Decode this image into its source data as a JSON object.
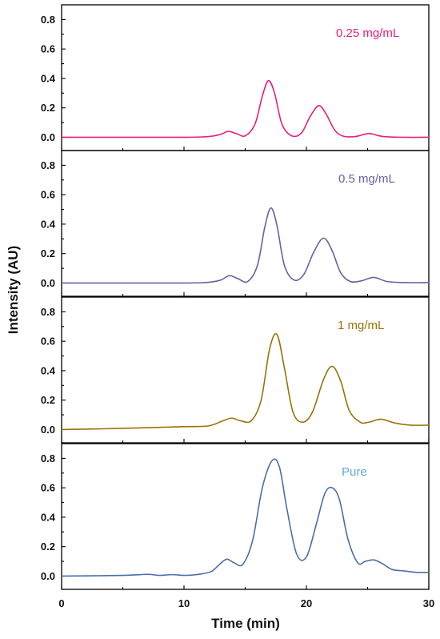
{
  "chart_data": {
    "type": "line",
    "xlabel": "Time (min)",
    "ylabel": "Intensity (AU)",
    "xlim": [
      0,
      30
    ],
    "x_ticks": [
      "0",
      "10",
      "20",
      "30"
    ],
    "y_ticks": [
      "0.0",
      "0.2",
      "0.4",
      "0.6",
      "0.8"
    ],
    "grid": false,
    "panels": [
      {
        "label": "0.25 mg/mL",
        "color": "#e8207a",
        "ylim": [
          -0.09,
          0.9
        ],
        "x": [
          0,
          5,
          10,
          12,
          13,
          13.6,
          14.3,
          15,
          15.8,
          16.4,
          16.9,
          17.4,
          18,
          18.8,
          19.6,
          20.3,
          21,
          21.6,
          22.3,
          23,
          24,
          25.1,
          26.3,
          28,
          30
        ],
        "y": [
          0.0,
          0.0,
          0.0,
          0.005,
          0.02,
          0.04,
          0.025,
          0.01,
          0.09,
          0.28,
          0.385,
          0.3,
          0.09,
          0.01,
          0.03,
          0.14,
          0.215,
          0.16,
          0.05,
          0.008,
          0.005,
          0.025,
          0.005,
          0.0,
          0.0
        ]
      },
      {
        "label": "0.5 mg/mL",
        "color": "#6b5fa3",
        "ylim": [
          -0.09,
          0.9
        ],
        "x": [
          0,
          5,
          10,
          12,
          13,
          13.7,
          14.4,
          15.2,
          16,
          16.6,
          17.1,
          17.6,
          18.2,
          19,
          19.8,
          20.6,
          21.4,
          22.1,
          22.8,
          23.6,
          24.5,
          25.5,
          26.6,
          28,
          30
        ],
        "y": [
          0.0,
          0.0,
          0.0,
          0.005,
          0.02,
          0.05,
          0.03,
          0.01,
          0.12,
          0.38,
          0.51,
          0.39,
          0.12,
          0.02,
          0.06,
          0.21,
          0.305,
          0.22,
          0.07,
          0.01,
          0.015,
          0.038,
          0.01,
          0.003,
          0.003
        ]
      },
      {
        "label": "1 mg/mL",
        "color": "#9a7208",
        "ylim": [
          -0.09,
          0.9
        ],
        "x": [
          0,
          5,
          8,
          10,
          12,
          13.2,
          13.9,
          14.6,
          15.5,
          16.3,
          17,
          17.6,
          18.2,
          18.9,
          19.7,
          20.5,
          21.4,
          22.1,
          22.8,
          23.5,
          24.4,
          25.1,
          26.1,
          27.2,
          28.5,
          30
        ],
        "y": [
          0.0,
          0.008,
          0.015,
          0.02,
          0.025,
          0.06,
          0.078,
          0.06,
          0.06,
          0.2,
          0.55,
          0.645,
          0.42,
          0.12,
          0.05,
          0.12,
          0.34,
          0.43,
          0.33,
          0.13,
          0.05,
          0.05,
          0.07,
          0.045,
          0.03,
          0.03
        ]
      },
      {
        "label": "Pure",
        "color": "#4a6fa8",
        "label_color": "#5fa8d6",
        "ylim": [
          -0.09,
          0.9
        ],
        "x": [
          0,
          5,
          7,
          8,
          9,
          10,
          11,
          12.2,
          12.9,
          13.5,
          14.1,
          14.8,
          15.6,
          16.4,
          17.2,
          17.8,
          18.4,
          19.2,
          20,
          20.8,
          21.5,
          22.1,
          22.7,
          23.4,
          24.2,
          24.8,
          25.5,
          26.2,
          27,
          28,
          29,
          30
        ],
        "y": [
          0.0,
          0.005,
          0.012,
          0.005,
          0.01,
          0.005,
          0.01,
          0.03,
          0.08,
          0.115,
          0.09,
          0.08,
          0.24,
          0.6,
          0.785,
          0.74,
          0.46,
          0.15,
          0.13,
          0.35,
          0.56,
          0.6,
          0.52,
          0.25,
          0.09,
          0.1,
          0.11,
          0.085,
          0.045,
          0.035,
          0.025,
          0.025
        ]
      }
    ]
  }
}
